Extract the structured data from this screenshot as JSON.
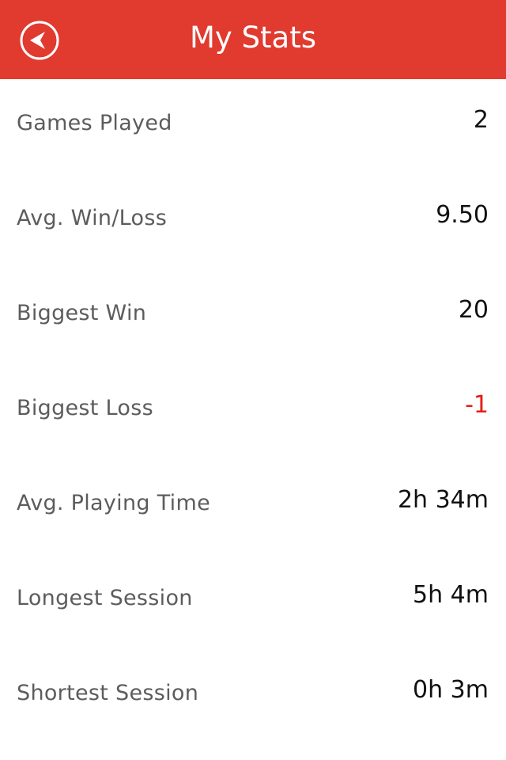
{
  "header": {
    "title": "My Stats",
    "back_icon": "back-arrow-circle-icon",
    "background_color": "#e13a2f"
  },
  "stats": [
    {
      "label": "Games Played",
      "value": "2",
      "negative": false
    },
    {
      "label": "Avg. Win/Loss",
      "value": "9.50",
      "negative": false
    },
    {
      "label": "Biggest Win",
      "value": "20",
      "negative": false
    },
    {
      "label": "Biggest Loss",
      "value": "-1",
      "negative": true
    },
    {
      "label": "Avg. Playing Time",
      "value": "2h 34m",
      "negative": false
    },
    {
      "label": "Longest Session",
      "value": "5h 4m",
      "negative": false
    },
    {
      "label": "Shortest Session",
      "value": "0h 3m",
      "negative": false
    }
  ],
  "colors": {
    "label": "#5c5c5c",
    "value": "#111111",
    "negative_value": "#e41e12"
  }
}
